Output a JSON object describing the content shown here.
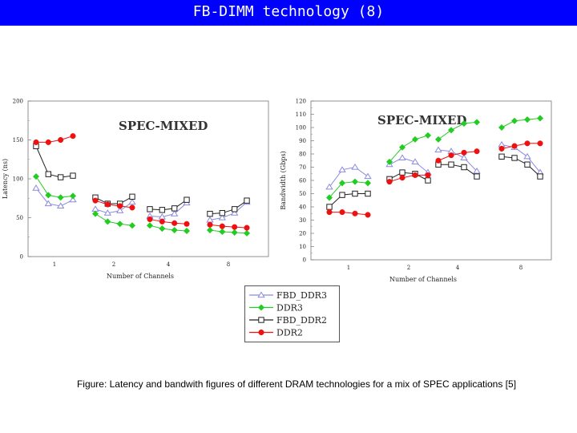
{
  "header": {
    "title": "FB-DIMM technology (8)",
    "bg_color": "#0000ff",
    "text_color": "#ffffff"
  },
  "caption": "Figure: Latency and bandwith figures of different DRAM technologies for a mix of SPEC applications [5]",
  "legend": [
    {
      "label": "FBD_DDR3",
      "marker": "triangle",
      "color": "#8a8ae0"
    },
    {
      "label": "DDR3",
      "marker": "diamond",
      "color": "#22cc22"
    },
    {
      "label": "FBD_DDR2",
      "marker": "square",
      "color": "#222222"
    },
    {
      "label": "DDR2",
      "marker": "circle",
      "color": "#ee1111"
    }
  ],
  "chart_data": [
    {
      "type": "line",
      "title": "SPEC-MIXED",
      "xlabel": "Number of Channels",
      "ylabel": "Latency (ns)",
      "ylim": [
        0,
        200
      ],
      "yticks": [
        0,
        50,
        100,
        150,
        200
      ],
      "categories": [
        "1",
        "2",
        "4",
        "8"
      ],
      "points_per_group": 4,
      "series": [
        {
          "name": "FBD_DDR3",
          "groups": [
            [
              88,
              68,
              65,
              73
            ],
            [
              61,
              56,
              59,
              70
            ],
            [
              52,
              51,
              55,
              69
            ],
            [
              47,
              50,
              56,
              70
            ]
          ]
        },
        {
          "name": "DDR3",
          "groups": [
            [
              103,
              79,
              76,
              78
            ],
            [
              55,
              45,
              42,
              40
            ],
            [
              40,
              36,
              34,
              33
            ],
            [
              34,
              32,
              31,
              30
            ]
          ]
        },
        {
          "name": "FBD_DDR2",
          "groups": [
            [
              142,
              106,
              102,
              104
            ],
            [
              76,
              68,
              68,
              77
            ],
            [
              61,
              60,
              62,
              73
            ],
            [
              55,
              56,
              61,
              72
            ]
          ]
        },
        {
          "name": "DDR2",
          "groups": [
            [
              147,
              147,
              150,
              155
            ],
            [
              72,
              67,
              65,
              63
            ],
            [
              48,
              45,
              43,
              42
            ],
            [
              41,
              39,
              38,
              37
            ]
          ]
        }
      ]
    },
    {
      "type": "line",
      "title": "SPEC-MIXED",
      "xlabel": "Number of Channels",
      "ylabel": "Bandwidth (Gbps)",
      "ylim": [
        0,
        120
      ],
      "yticks": [
        0,
        10,
        20,
        30,
        40,
        50,
        60,
        70,
        80,
        90,
        100,
        110,
        120
      ],
      "categories": [
        "1",
        "2",
        "4",
        "8"
      ],
      "points_per_group": 4,
      "series": [
        {
          "name": "FBD_DDR3",
          "groups": [
            [
              55,
              68,
              70,
              63
            ],
            [
              72,
              77,
              74,
              66
            ],
            [
              83,
              82,
              77,
              67
            ],
            [
              87,
              85,
              78,
              66
            ]
          ]
        },
        {
          "name": "DDR3",
          "groups": [
            [
              47,
              58,
              59,
              58
            ],
            [
              74,
              85,
              91,
              94
            ],
            [
              91,
              98,
              103,
              104
            ],
            [
              100,
              105,
              106,
              107
            ]
          ]
        },
        {
          "name": "FBD_DDR2",
          "groups": [
            [
              40,
              49,
              50,
              50
            ],
            [
              61,
              66,
              65,
              60
            ],
            [
              72,
              72,
              70,
              63
            ],
            [
              78,
              77,
              72,
              63
            ]
          ]
        },
        {
          "name": "DDR2",
          "groups": [
            [
              36,
              36,
              35,
              34
            ],
            [
              59,
              62,
              64,
              64
            ],
            [
              75,
              79,
              81,
              82
            ],
            [
              84,
              86,
              88,
              88
            ]
          ]
        }
      ]
    }
  ]
}
